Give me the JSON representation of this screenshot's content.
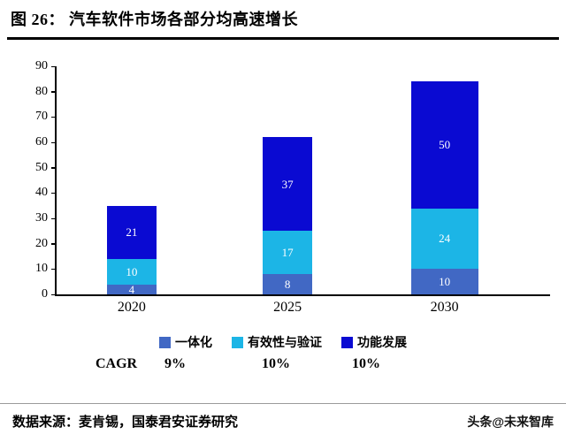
{
  "header": {
    "title": "图 26：  汽车软件市场各部分均高速增长"
  },
  "chart_data": {
    "type": "bar",
    "stacked": true,
    "title": "汽车软件市场各部分均高速增长",
    "categories": [
      "2020",
      "2025",
      "2030"
    ],
    "series": [
      {
        "name": "一体化",
        "color": "#4168c4",
        "values": [
          4,
          8,
          10
        ]
      },
      {
        "name": "有效性与验证",
        "color": "#1cb5e6",
        "values": [
          10,
          17,
          24
        ]
      },
      {
        "name": "功能发展",
        "color": "#0a0ad2",
        "values": [
          21,
          37,
          50
        ]
      }
    ],
    "xlabel": "",
    "ylabel": "",
    "ylim": [
      0,
      90
    ],
    "yticks": [
      0,
      10,
      20,
      30,
      40,
      50,
      60,
      70,
      80,
      90
    ],
    "grid": false,
    "legend_position": "bottom"
  },
  "cagr": {
    "label": "CAGR",
    "values": [
      "9%",
      "10%",
      "10%"
    ]
  },
  "footer": {
    "source": "数据来源：麦肯锡，国泰君安证券研究",
    "watermark": "头条@未来智库"
  }
}
